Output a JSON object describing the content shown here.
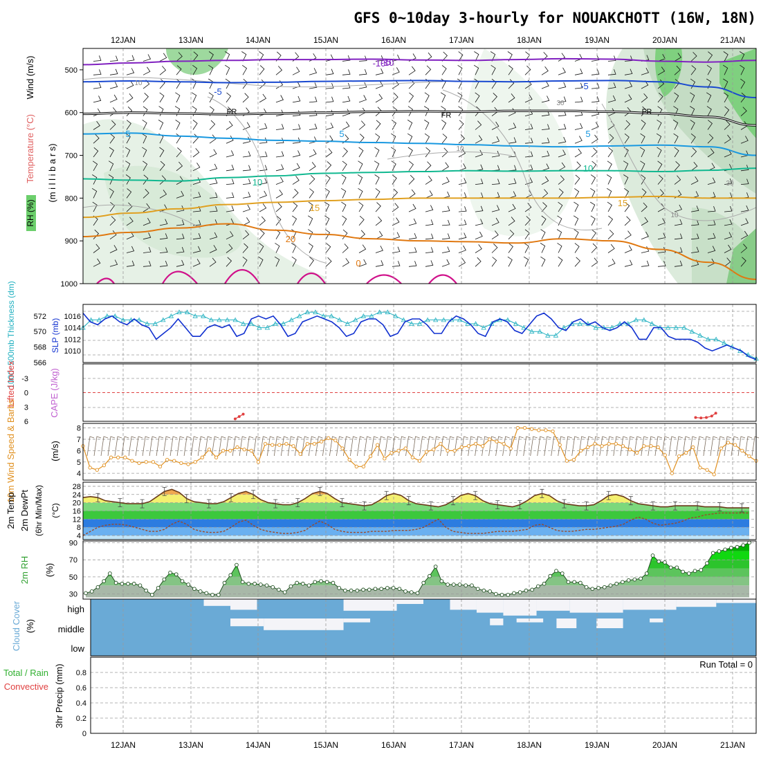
{
  "title": "GFS 0~10day 3-hourly for NOUAKCHOTT (16W, 18N)",
  "dates": [
    "12JAN",
    "13JAN",
    "14JAN",
    "15JAN",
    "16JAN",
    "17JAN",
    "18JAN",
    "19JAN",
    "20JAN",
    "21JAN"
  ],
  "colors": {
    "temp_m10": "#8020c0",
    "temp_m5": "#1848d0",
    "temp_5": "#1898e0",
    "temp_10": "#10b890",
    "temp_15": "#e0a020",
    "temp_20": "#e07810",
    "temp_25": "#d0108a",
    "slp": "#1030d0",
    "thickness": "#20b0c0",
    "lifted": "#e04040",
    "wind": "#e09020",
    "rh": "#30a030",
    "cloud": "#6aaad6",
    "cloud_gap": "#f4f4f8"
  },
  "chart_data": [
    {
      "type": "heatmap",
      "name": "upper-air",
      "ylabel_parts": [
        "RH (%)",
        "Temperature (°C)",
        "Wind (m/s)"
      ],
      "ylabel2": "(m i l l i b a r s)",
      "yticks": [
        "500",
        "600",
        "700",
        "800",
        "900",
        "1000"
      ],
      "ylim": [
        450,
        1000
      ],
      "contour_labels": [
        "-10",
        "-5",
        "FR",
        "5",
        "10",
        "15",
        "20",
        "0",
        "10",
        "30",
        "10",
        "30",
        "10",
        "-5",
        "FR",
        "5",
        "10",
        "15",
        "-10",
        "-5",
        "FR",
        "5"
      ],
      "contours": [
        {
          "level": -10,
          "pressure": [
            488,
            484,
            480,
            478,
            476,
            476,
            475,
            477,
            478,
            476,
            474,
            475,
            480,
            482,
            478
          ]
        },
        {
          "level": -5,
          "pressure": [
            528,
            526,
            528,
            530,
            529,
            527,
            526,
            525,
            527,
            528,
            526,
            525,
            528,
            540,
            565
          ]
        },
        {
          "level": 0,
          "pressure": [
            603,
            600,
            602,
            604,
            602,
            600,
            598,
            597,
            598,
            596,
            596,
            598,
            602,
            610,
            630
          ]
        },
        {
          "level": 5,
          "pressure": [
            650,
            648,
            655,
            660,
            665,
            667,
            670,
            672,
            675,
            678,
            680,
            678,
            676,
            680,
            700
          ]
        },
        {
          "level": 10,
          "pressure": [
            755,
            758,
            760,
            752,
            748,
            742,
            740,
            738,
            736,
            737,
            736,
            736,
            738,
            735,
            730
          ]
        },
        {
          "level": 15,
          "pressure": [
            845,
            835,
            825,
            815,
            810,
            806,
            803,
            800,
            800,
            800,
            800,
            798,
            796,
            800,
            800
          ]
        },
        {
          "level": 20,
          "pressure": [
            890,
            880,
            870,
            860,
            875,
            885,
            895,
            900,
            902,
            905,
            895,
            900,
            920,
            950,
            990
          ]
        }
      ]
    },
    {
      "type": "line",
      "name": "slp-thickness",
      "ylabel_left": "1000~500mb Thickness (dm)",
      "ylabel_right": "SLP (mb)",
      "thickness_ticks": [
        "566",
        "568",
        "570",
        "572"
      ],
      "slp_ticks": [
        "1010",
        "1012",
        "1014",
        "1016"
      ],
      "series": [
        {
          "name": "SLP (mb)",
          "ylim": [
            1008,
            1018
          ],
          "values": [
            1016.5,
            1015,
            1014.5,
            1015.5,
            1016,
            1015,
            1014.5,
            1015.5,
            1014.5,
            1014,
            1012,
            1013,
            1014,
            1015.5,
            1014,
            1012.5,
            1012.5,
            1014,
            1014.5,
            1014,
            1014.5,
            1012.5,
            1013,
            1015.5,
            1016,
            1015.5,
            1016,
            1014.5,
            1012.5,
            1013,
            1015,
            1015.5,
            1016,
            1015.5,
            1015,
            1014,
            1012.5,
            1013,
            1015,
            1015.5,
            1015.5,
            1014.5,
            1012.5,
            1013,
            1015,
            1015.5,
            1015.5,
            1014.5,
            1013,
            1013,
            1015,
            1016,
            1015.5,
            1014.5,
            1013,
            1012.5,
            1015,
            1015.5,
            1015,
            1013.5,
            1013,
            1014.5,
            1016,
            1016.5,
            1015.5,
            1014,
            1013.5,
            1015,
            1015.5,
            1014.5,
            1015,
            1014,
            1013.5,
            1014,
            1015,
            1014,
            1012,
            1012,
            1014,
            1014,
            1012.5,
            1012,
            1012,
            1012,
            1011.5,
            1010.5,
            1010,
            1010.5,
            1011,
            1010.5,
            1010,
            1009,
            1008.5
          ]
        },
        {
          "name": "Thickness (dm)",
          "ylim": [
            566,
            573.5
          ],
          "values": [
            570.5,
            571.5,
            571.5,
            572,
            572,
            571.5,
            571.5,
            571.5,
            571,
            571,
            571.5,
            572,
            572.5,
            572.5,
            572,
            572,
            571.5,
            571.5,
            571.5,
            571.5,
            571,
            571,
            570.5,
            570.5,
            571,
            571,
            571.5,
            572,
            572.5,
            572.5,
            572,
            572,
            571.5,
            571,
            571.5,
            572,
            572,
            572.5,
            572.5,
            572,
            571.5,
            571,
            571,
            571.5,
            571.5,
            571.5,
            571.5,
            571.5,
            571,
            571,
            570.5,
            571,
            571.5,
            571.5,
            571,
            570.5,
            570,
            570,
            569.5,
            569.5,
            570.5,
            571,
            571,
            571,
            570.5,
            570.5,
            570.5,
            571,
            571,
            571.5,
            571.5,
            571,
            570.5,
            570.5,
            570.5,
            570.5,
            570,
            569.5,
            569,
            569,
            568.5,
            568,
            567.5,
            567,
            566.5
          ]
        }
      ]
    },
    {
      "type": "line",
      "name": "lifted-index",
      "ylabel_left": "Lifted Index",
      "ylabel_right": "CAPE (J/kg)",
      "yticks": [
        "-3",
        "0",
        "3",
        "6"
      ],
      "ylim": [
        -6,
        6
      ],
      "series": [
        {
          "name": "Lifted Index segment A",
          "x": [
            22.6,
            23.2,
            23.8
          ],
          "values": [
            5.5,
            5.0,
            4.5
          ]
        },
        {
          "name": "Lifted Index segment B",
          "x": [
            91.0,
            91.8,
            92.6,
            93.4,
            94.0
          ],
          "values": [
            5.2,
            5.3,
            5.2,
            4.9,
            4.3
          ]
        }
      ]
    },
    {
      "type": "line",
      "name": "wind10m",
      "ylabel_left": "10m Wind Speed & Barbs",
      "ylabel_right": "(m/s)",
      "yticks": [
        "4",
        "5",
        "6",
        "7",
        "8"
      ],
      "ylim": [
        3.4,
        8.4
      ],
      "values": [
        6.4,
        4.5,
        4.3,
        4.7,
        5.4,
        5.4,
        5.4,
        5.1,
        4.9,
        5.0,
        5.0,
        4.6,
        5.2,
        5.1,
        4.9,
        4.8,
        5.0,
        5.4,
        6.1,
        5.4,
        6.0,
        6.0,
        6.3,
        6.1,
        6.0,
        5.0,
        6.6,
        6.5,
        6.5,
        6.6,
        6.4,
        5.7,
        6.6,
        6.6,
        6.8,
        7.1,
        6.9,
        6.2,
        5.2,
        4.6,
        4.6,
        5.5,
        6.5,
        5.3,
        5.8,
        6.0,
        6.2,
        5.4,
        5.1,
        5.9,
        6.1,
        6.6,
        6.0,
        6.0,
        6.3,
        6.4,
        6.6,
        6.4,
        7.0,
        6.8,
        6.6,
        6.2,
        8.0,
        8.0,
        7.9,
        7.8,
        7.8,
        7.7,
        6.5,
        5.1,
        5.2,
        6.0,
        6.3,
        6.6,
        6.4,
        6.6,
        6.6,
        6.4,
        6.1,
        5.8,
        6.4,
        6.4,
        6.3,
        5.6,
        4.0,
        5.5,
        5.8,
        6.3,
        4.5,
        4.3,
        3.9,
        6.2,
        6.7,
        6.5,
        6.0,
        5.5,
        5.1
      ]
    },
    {
      "type": "area",
      "name": "temp2m",
      "ylabel_parts": [
        "2m Temp",
        "2m DewPt",
        "(6hr Min/Max)"
      ],
      "ylabel_right": "(°C)",
      "yticks": [
        "4",
        "8",
        "12",
        "16",
        "20",
        "24",
        "28"
      ],
      "ylim": [
        2,
        30
      ],
      "temp": [
        22.5,
        23,
        22.5,
        21,
        20.5,
        20,
        19.5,
        19.5,
        19.5,
        20.5,
        23,
        25.5,
        26.5,
        25,
        22,
        20.5,
        20,
        19.5,
        19.5,
        20.5,
        22.5,
        24.5,
        25.5,
        24,
        21.5,
        20,
        19.5,
        19,
        19,
        20,
        22,
        24.5,
        25.5,
        24.5,
        22,
        20,
        19.5,
        19,
        18.5,
        19,
        21,
        23.5,
        24.5,
        23.5,
        21,
        19.5,
        19,
        18.5,
        18,
        19,
        21,
        23.5,
        24.5,
        23.5,
        21,
        19.5,
        19,
        18.5,
        18,
        19,
        21,
        23.5,
        24.5,
        23.5,
        21,
        19.5,
        19,
        18.5,
        18.5,
        19,
        21,
        23.5,
        24,
        23,
        21,
        19.5,
        19,
        18.5,
        18,
        18,
        18.5,
        18.5,
        18.5,
        18.5,
        18,
        18,
        18,
        17.5,
        17.5,
        17.5,
        17.5
      ],
      "dewpt": [
        4,
        6,
        8,
        9,
        9.5,
        9.5,
        9,
        8,
        7,
        6,
        6,
        7,
        9.5,
        11,
        9.5,
        7,
        6,
        5.5,
        5.5,
        6,
        8,
        10.5,
        11.5,
        9,
        7,
        6,
        5.5,
        5,
        5,
        5.5,
        6.5,
        9,
        11,
        9.5,
        7,
        6,
        5.5,
        5.5,
        5.5,
        6,
        6,
        6,
        6.5,
        6.5,
        6.5,
        7,
        8,
        10,
        12,
        8,
        6,
        5.5,
        5,
        5,
        5,
        5.5,
        6,
        6,
        6,
        6.5,
        7,
        9,
        9.5,
        8,
        6.5,
        6,
        6,
        6.5,
        7,
        7,
        7.5,
        8,
        8.5,
        9.5,
        11.5,
        13,
        12,
        10,
        9,
        9.5,
        10,
        11,
        12.5,
        13,
        14,
        14.5,
        15,
        15,
        15,
        15,
        15
      ]
    },
    {
      "type": "area",
      "name": "rh2m",
      "ylabel_left": "2m RH",
      "ylabel_right": "(%)",
      "yticks": [
        "30",
        "50",
        "70",
        "90"
      ],
      "ylim": [
        24,
        92
      ],
      "values": [
        31,
        33,
        38,
        45,
        54,
        43,
        42,
        42,
        42,
        40,
        34,
        29,
        37,
        47,
        55,
        53,
        45,
        41,
        36,
        33,
        31,
        29,
        29,
        43,
        52,
        64,
        44,
        42,
        42,
        41,
        40,
        38,
        35,
        32,
        39,
        43,
        42,
        40,
        44,
        45,
        44,
        43,
        37,
        34,
        34,
        34,
        35,
        35,
        36,
        36,
        37,
        37,
        36,
        33,
        32,
        31,
        43,
        51,
        62,
        45,
        41,
        41,
        41,
        40,
        40,
        36,
        34,
        33,
        30,
        29,
        29,
        31,
        32,
        34,
        35,
        39,
        42,
        51,
        57,
        54,
        44,
        44,
        43,
        38,
        36,
        37,
        38,
        40,
        42,
        44,
        46,
        47,
        48,
        54,
        75,
        68,
        67,
        61,
        61,
        56,
        54,
        57,
        58,
        66,
        78,
        80,
        82,
        84,
        85,
        87,
        90
      ],
      "band_colors": [
        "#a8b8a8",
        "#84c484",
        "#5cc45c",
        "#2cc42c",
        "#10d810",
        "#00b000"
      ]
    },
    {
      "type": "heatmap",
      "name": "cloud-cover",
      "ylabel": "Cloud Cover (%)",
      "row_labels": [
        "high",
        "middle",
        "low"
      ],
      "high_clear_spans": [
        [
          0.0,
          0.5,
          0.0
        ],
        [
          13,
          17,
          0.0
        ],
        [
          17,
          21,
          0.35
        ],
        [
          21,
          25,
          0.55
        ],
        [
          25,
          38,
          0.0
        ],
        [
          38,
          46,
          0.6
        ],
        [
          46,
          50,
          0.25
        ],
        [
          50,
          54,
          0.0
        ],
        [
          54,
          58,
          0.55
        ],
        [
          58,
          62,
          0.7
        ],
        [
          62,
          67,
          0.85
        ],
        [
          67,
          72,
          0.6
        ],
        [
          72,
          80,
          0.7
        ],
        [
          80,
          88,
          0.55
        ],
        [
          88,
          94,
          0.4
        ],
        [
          94,
          100,
          0.2
        ]
      ],
      "mid_clear_spans": [
        [
          21,
          26,
          0.4
        ],
        [
          26,
          38,
          0.6
        ],
        [
          38,
          42,
          0.2
        ],
        [
          60,
          62,
          0.35
        ],
        [
          64,
          68,
          0.2
        ],
        [
          70,
          73,
          0.5
        ],
        [
          76,
          80,
          0.5
        ],
        [
          84,
          86,
          0.2
        ]
      ]
    },
    {
      "type": "bar",
      "name": "precip",
      "ylabel_left": "Total / Rain",
      "ylabel_left2": "Convective",
      "ylabel_right": "3hr Precip (mm)",
      "yticks": [
        "0",
        "0.2",
        "0.4",
        "0.6",
        "0.8"
      ],
      "ylim": [
        0,
        1
      ],
      "values": [],
      "annotation": "Run Total = 0"
    }
  ]
}
